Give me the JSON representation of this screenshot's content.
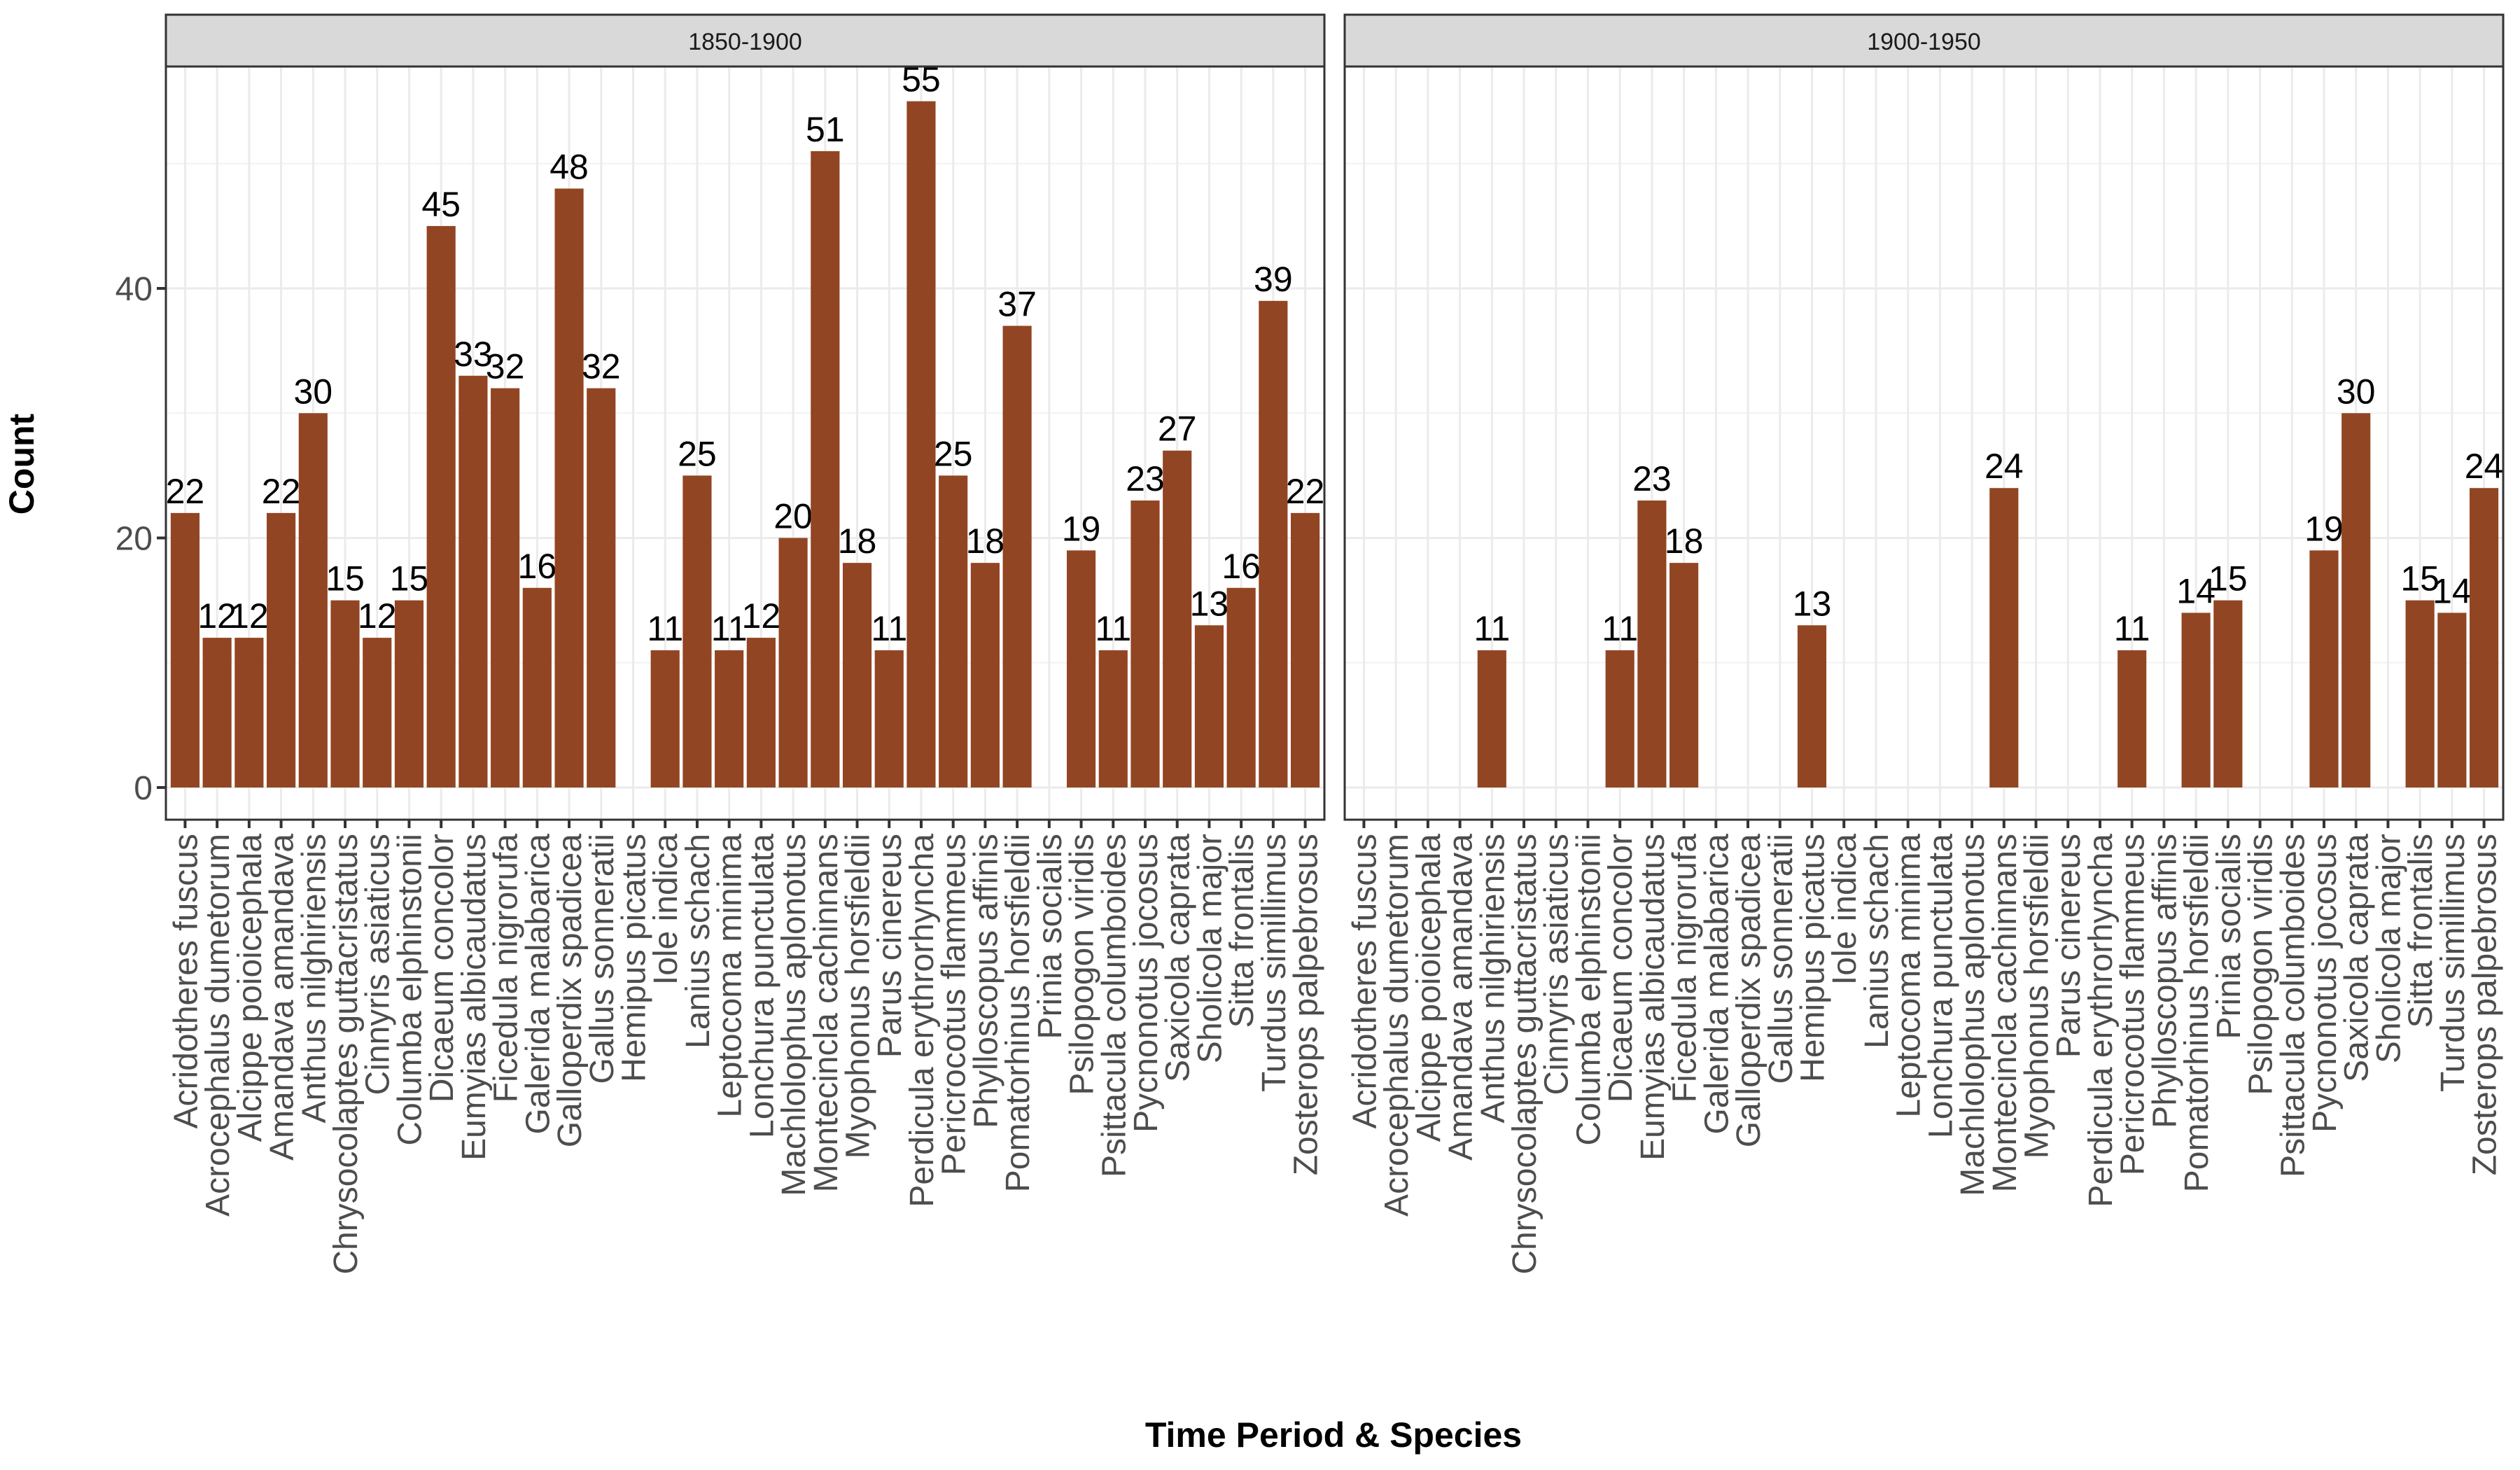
{
  "chart_data": {
    "type": "bar",
    "xlabel": "Time Period & Species",
    "ylabel": "Count",
    "ylim": [
      0,
      58
    ],
    "y_ticks": [
      0,
      20,
      40
    ],
    "grid": true,
    "bar_color": "#924522",
    "categories": [
      "Acridotheres fuscus",
      "Acrocephalus dumetorum",
      "Alcippe poioicephala",
      "Amandava amandava",
      "Anthus nilghiriensis",
      "Chrysocolaptes guttacristatus",
      "Cinnyris asiaticus",
      "Columba elphinstonii",
      "Dicaeum concolor",
      "Eumyias albicaudatus",
      "Ficedula nigrorufa",
      "Galerida malabarica",
      "Galloperdix spadicea",
      "Gallus sonneratii",
      "Hemipus picatus",
      "Iole indica",
      "Lanius schach",
      "Leptocoma minima",
      "Lonchura punctulata",
      "Machlolophus aplonotus",
      "Montecincla cachinnans",
      "Myophonus horsfieldii",
      "Parus cinereus",
      "Perdicula erythrorhyncha",
      "Pericrocotus flammeus",
      "Phylloscopus affinis",
      "Pomatorhinus horsfieldii",
      "Prinia socialis",
      "Psilopogon viridis",
      "Psittacula columboides",
      "Pycnonotus jocosus",
      "Saxicola caprata",
      "Sholicola major",
      "Sitta frontalis",
      "Turdus simillimus",
      "Zosterops palpebrosus"
    ],
    "panels": [
      {
        "name": "1850-1900",
        "values": [
          22,
          12,
          12,
          22,
          30,
          15,
          12,
          15,
          45,
          33,
          32,
          16,
          48,
          32,
          null,
          11,
          25,
          11,
          12,
          20,
          51,
          18,
          11,
          55,
          25,
          18,
          37,
          null,
          19,
          11,
          23,
          27,
          13,
          16,
          39,
          22
        ]
      },
      {
        "name": "1900-1950",
        "values": [
          null,
          null,
          null,
          null,
          11,
          null,
          null,
          null,
          11,
          23,
          18,
          null,
          null,
          null,
          13,
          null,
          null,
          null,
          null,
          null,
          24,
          null,
          null,
          null,
          11,
          null,
          14,
          15,
          null,
          null,
          19,
          30,
          null,
          15,
          14,
          24
        ]
      }
    ]
  }
}
